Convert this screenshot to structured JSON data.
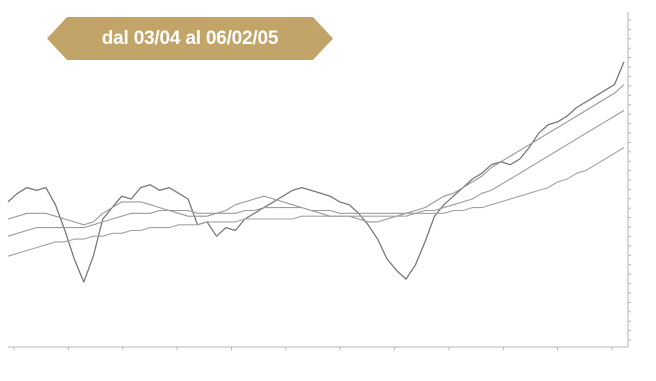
{
  "banner": {
    "text": "dal 03/04 al 06/02/05",
    "color": "#c2a468"
  },
  "chart_data": {
    "type": "line",
    "title": "",
    "xlabel": "",
    "ylabel": "",
    "x_ticks": [
      "",
      "",
      "",
      "",
      "",
      "",
      "",
      "",
      "",
      "",
      "",
      ""
    ],
    "y_ticks": [
      "",
      "",
      "",
      "",
      "",
      "",
      "",
      "",
      "",
      "",
      "",
      "",
      "",
      "",
      "",
      "",
      "",
      "",
      "",
      "",
      "",
      "",
      "",
      "",
      "",
      "",
      "",
      "",
      "",
      "",
      "",
      "",
      "",
      "",
      ""
    ],
    "x": [
      0,
      1,
      2,
      3,
      4,
      5,
      6,
      7,
      8,
      9,
      10,
      11,
      12,
      13,
      14,
      15,
      16,
      17,
      18,
      19,
      20,
      21,
      22,
      23,
      24,
      25,
      26,
      27,
      28,
      29,
      30,
      31,
      32,
      33,
      34,
      35,
      36,
      37,
      38,
      39,
      40,
      41,
      42,
      43,
      44,
      45,
      46,
      47,
      48,
      49,
      50,
      51,
      52,
      53,
      54,
      55,
      56,
      57,
      58,
      59,
      60,
      61,
      62,
      63,
      64,
      65
    ],
    "series": [
      {
        "values": [
          0.42,
          0.45,
          0.47,
          0.46,
          0.47,
          0.41,
          0.32,
          0.22,
          0.14,
          0.23,
          0.36,
          0.4,
          0.44,
          0.43,
          0.47,
          0.48,
          0.46,
          0.47,
          0.45,
          0.43,
          0.34,
          0.35,
          0.3,
          0.33,
          0.32,
          0.36,
          0.38,
          0.4,
          0.42,
          0.44,
          0.46,
          0.47,
          0.46,
          0.45,
          0.44,
          0.42,
          0.41,
          0.38,
          0.34,
          0.29,
          0.22,
          0.18,
          0.15,
          0.2,
          0.28,
          0.37,
          0.41,
          0.44,
          0.47,
          0.5,
          0.52,
          0.55,
          0.56,
          0.55,
          0.57,
          0.61,
          0.66,
          0.69,
          0.7,
          0.72,
          0.75,
          0.77,
          0.79,
          0.81,
          0.83,
          0.91
        ]
      },
      {
        "values": [
          0.36,
          0.37,
          0.38,
          0.38,
          0.38,
          0.37,
          0.36,
          0.35,
          0.34,
          0.35,
          0.38,
          0.4,
          0.42,
          0.42,
          0.42,
          0.41,
          0.4,
          0.39,
          0.38,
          0.37,
          0.37,
          0.37,
          0.38,
          0.39,
          0.41,
          0.42,
          0.43,
          0.44,
          0.43,
          0.42,
          0.41,
          0.4,
          0.39,
          0.38,
          0.37,
          0.37,
          0.37,
          0.36,
          0.35,
          0.35,
          0.36,
          0.37,
          0.38,
          0.39,
          0.4,
          0.42,
          0.44,
          0.45,
          0.47,
          0.49,
          0.51,
          0.54,
          0.56,
          0.58,
          0.6,
          0.62,
          0.64,
          0.66,
          0.68,
          0.7,
          0.72,
          0.74,
          0.76,
          0.78,
          0.8,
          0.83
        ]
      },
      {
        "values": [
          0.3,
          0.31,
          0.32,
          0.33,
          0.33,
          0.33,
          0.33,
          0.33,
          0.33,
          0.34,
          0.35,
          0.36,
          0.37,
          0.38,
          0.38,
          0.38,
          0.39,
          0.39,
          0.39,
          0.39,
          0.38,
          0.38,
          0.38,
          0.38,
          0.38,
          0.39,
          0.39,
          0.4,
          0.4,
          0.4,
          0.4,
          0.4,
          0.39,
          0.39,
          0.39,
          0.38,
          0.38,
          0.38,
          0.38,
          0.38,
          0.38,
          0.38,
          0.38,
          0.38,
          0.39,
          0.39,
          0.4,
          0.41,
          0.42,
          0.43,
          0.45,
          0.46,
          0.48,
          0.5,
          0.52,
          0.54,
          0.56,
          0.58,
          0.6,
          0.62,
          0.64,
          0.66,
          0.68,
          0.7,
          0.72,
          0.74
        ]
      },
      {
        "values": [
          0.23,
          0.24,
          0.25,
          0.26,
          0.27,
          0.28,
          0.28,
          0.29,
          0.29,
          0.3,
          0.3,
          0.31,
          0.31,
          0.32,
          0.32,
          0.33,
          0.33,
          0.33,
          0.34,
          0.34,
          0.34,
          0.35,
          0.35,
          0.35,
          0.35,
          0.36,
          0.36,
          0.36,
          0.36,
          0.36,
          0.36,
          0.37,
          0.37,
          0.37,
          0.37,
          0.37,
          0.37,
          0.37,
          0.37,
          0.37,
          0.37,
          0.37,
          0.37,
          0.38,
          0.38,
          0.38,
          0.38,
          0.39,
          0.39,
          0.4,
          0.4,
          0.41,
          0.42,
          0.43,
          0.44,
          0.45,
          0.46,
          0.47,
          0.49,
          0.5,
          0.52,
          0.53,
          0.55,
          0.57,
          0.59,
          0.61
        ]
      }
    ],
    "ylim": [
      0,
      1
    ],
    "grid": false,
    "colors": {
      "primary": "#787878",
      "averages": [
        "#999999",
        "#9c9c9c",
        "#a2a2a2"
      ]
    }
  }
}
